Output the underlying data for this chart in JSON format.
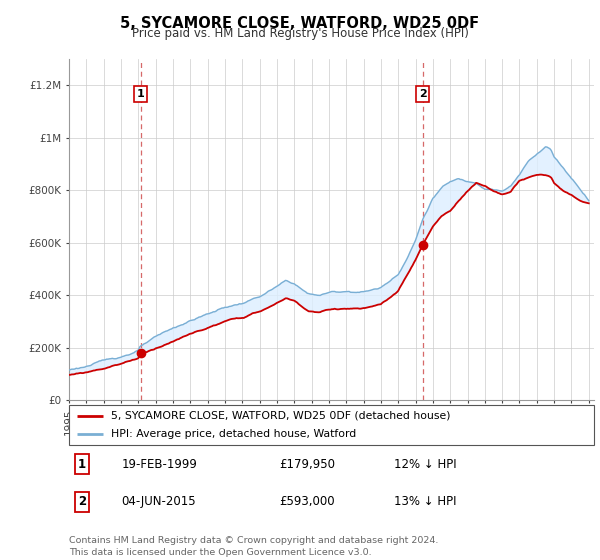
{
  "title": "5, SYCAMORE CLOSE, WATFORD, WD25 0DF",
  "subtitle": "Price paid vs. HM Land Registry's House Price Index (HPI)",
  "legend_line1": "5, SYCAMORE CLOSE, WATFORD, WD25 0DF (detached house)",
  "legend_line2": "HPI: Average price, detached house, Watford",
  "transaction1_date": "19-FEB-1999",
  "transaction1_price": "£179,950",
  "transaction1_hpi": "12% ↓ HPI",
  "transaction2_date": "04-JUN-2015",
  "transaction2_price": "£593,000",
  "transaction2_hpi": "13% ↓ HPI",
  "footnote": "Contains HM Land Registry data © Crown copyright and database right 2024.\nThis data is licensed under the Open Government Licence v3.0.",
  "red_color": "#cc0000",
  "blue_color": "#7aafd4",
  "fill_color": "#ddeeff",
  "dashed_color": "#cc4444",
  "background_color": "#ffffff",
  "grid_color": "#cccccc",
  "ylim_min": 0,
  "ylim_max": 1300000,
  "year_start": 1995,
  "year_end": 2025,
  "t1_year": 1999.13,
  "t2_year": 2015.42,
  "t1_price": 179950,
  "t2_price": 593000
}
